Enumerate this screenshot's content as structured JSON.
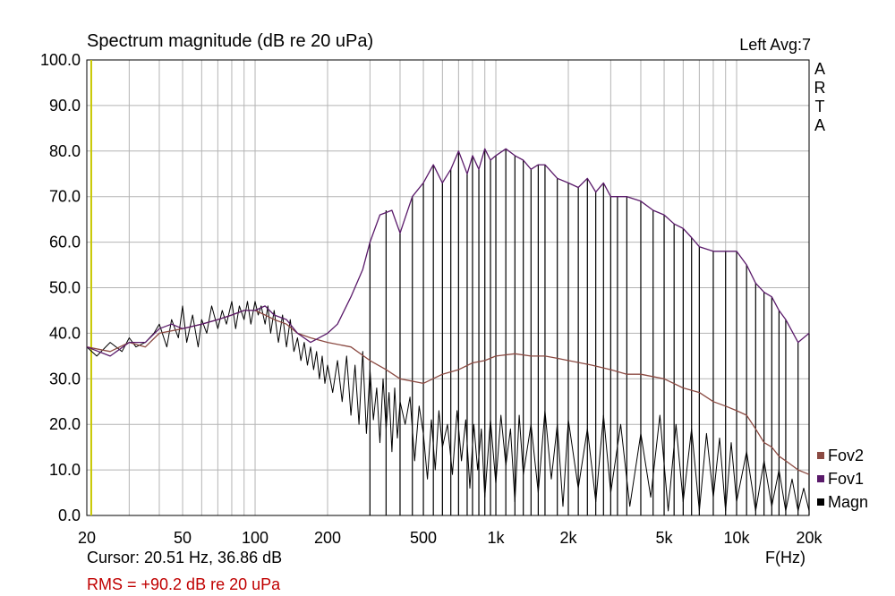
{
  "header": {
    "title": "Spectrum magnitude (dB re 20 uPa)",
    "channel_info": "Left  Avg:7"
  },
  "brand": {
    "letters": [
      "A",
      "R",
      "T",
      "A"
    ]
  },
  "footer": {
    "cursor": "Cursor: 20.51 Hz, 36.86 dB",
    "rms": "RMS =  +90.2 dB re 20 uPa",
    "rms_color": "#c00000",
    "x_axis_title": "F(Hz)"
  },
  "legend": [
    {
      "name": "Fov2",
      "color": "#8b4a42"
    },
    {
      "name": "Fov1",
      "color": "#5a1a6a"
    },
    {
      "name": "Magn",
      "color": "#000000"
    }
  ],
  "chart_data": {
    "type": "line",
    "title": "Spectrum magnitude (dB re 20 uPa)",
    "xlabel": "F(Hz)",
    "ylabel": "",
    "x_scale": "log",
    "xlim": [
      20,
      20000
    ],
    "ylim": [
      0,
      100
    ],
    "grid": true,
    "legend_position": "bottom-right",
    "cursor_hz": 20.51,
    "cursor_color": "#c8c800",
    "x_ticks": [
      {
        "value": 20,
        "label": "20"
      },
      {
        "value": 50,
        "label": "50"
      },
      {
        "value": 100,
        "label": "100"
      },
      {
        "value": 200,
        "label": "200"
      },
      {
        "value": 500,
        "label": "500"
      },
      {
        "value": 1000,
        "label": "1k"
      },
      {
        "value": 2000,
        "label": "2k"
      },
      {
        "value": 5000,
        "label": "5k"
      },
      {
        "value": 10000,
        "label": "10k"
      },
      {
        "value": 20000,
        "label": "20k"
      }
    ],
    "y_ticks": [
      {
        "value": 0,
        "label": "0.0"
      },
      {
        "value": 10,
        "label": "10.0"
      },
      {
        "value": 20,
        "label": "20.0"
      },
      {
        "value": 30,
        "label": "30.0"
      },
      {
        "value": 40,
        "label": "40.0"
      },
      {
        "value": 50,
        "label": "50.0"
      },
      {
        "value": 60,
        "label": "60.0"
      },
      {
        "value": 70,
        "label": "70.0"
      },
      {
        "value": 80,
        "label": "80.0"
      },
      {
        "value": 90,
        "label": "90.0"
      },
      {
        "value": 100,
        "label": "100.0"
      }
    ],
    "series": [
      {
        "name": "Fov1",
        "color": "#5a1a6a",
        "x": [
          20,
          25,
          30,
          35,
          40,
          45,
          50,
          60,
          70,
          80,
          90,
          100,
          110,
          120,
          135,
          150,
          170,
          200,
          220,
          250,
          280,
          300,
          330,
          370,
          400,
          450,
          500,
          550,
          600,
          650,
          700,
          760,
          800,
          850,
          900,
          950,
          1000,
          1100,
          1200,
          1300,
          1400,
          1500,
          1600,
          1800,
          2000,
          2200,
          2400,
          2600,
          2800,
          3000,
          3200,
          3500,
          4000,
          4500,
          5000,
          5500,
          6000,
          6500,
          7000,
          8000,
          9000,
          10000,
          11000,
          12000,
          13000,
          14000,
          15000,
          16000,
          18000,
          20000
        ],
        "y": [
          37,
          35,
          38,
          38,
          41,
          42,
          41,
          42,
          43,
          44,
          45,
          45,
          46,
          44,
          43,
          40,
          38,
          40,
          42,
          48,
          54,
          60,
          66,
          67,
          62,
          70,
          73,
          77,
          73,
          76,
          80,
          75,
          79,
          76,
          80.5,
          78,
          79,
          80.5,
          79,
          78,
          76,
          77,
          77,
          74,
          73,
          72,
          74,
          71,
          73,
          70,
          70,
          70,
          69,
          67,
          66,
          64,
          63,
          61,
          59,
          58,
          58,
          58,
          55,
          51,
          49,
          48,
          45,
          43,
          38,
          40
        ]
      },
      {
        "name": "Fov2",
        "color": "#8b4a42",
        "x": [
          20,
          25,
          30,
          35,
          40,
          50,
          60,
          70,
          80,
          90,
          100,
          110,
          120,
          135,
          150,
          170,
          200,
          250,
          300,
          350,
          400,
          500,
          600,
          700,
          800,
          900,
          1000,
          1200,
          1400,
          1600,
          1800,
          2000,
          2500,
          3000,
          3500,
          4000,
          5000,
          6000,
          7000,
          8000,
          9000,
          10000,
          11000,
          12000,
          13000,
          14000,
          15000,
          16000,
          18000,
          20000
        ],
        "y": [
          37,
          36,
          38,
          37,
          40,
          41,
          42,
          43,
          44,
          45,
          45,
          44,
          43,
          42,
          40,
          39,
          38,
          37,
          34,
          32,
          30,
          29,
          31,
          32,
          33.5,
          34,
          35,
          35.5,
          35,
          35,
          34.5,
          34,
          33,
          32,
          31,
          31,
          30,
          28,
          27,
          25,
          24,
          23,
          22,
          19,
          16,
          15,
          13,
          12,
          10,
          9
        ]
      },
      {
        "name": "Magn",
        "color": "#000000",
        "x": [
          20,
          22,
          25,
          28,
          30,
          32,
          35,
          38,
          40,
          43,
          45,
          48,
          50,
          52,
          55,
          58,
          60,
          63,
          66,
          70,
          73,
          76,
          80,
          83,
          86,
          90,
          93,
          96,
          100,
          103,
          106,
          110,
          113,
          116,
          120,
          125,
          130,
          135,
          140,
          145,
          150,
          155,
          160,
          165,
          170,
          175,
          180,
          185,
          190,
          195,
          200,
          210,
          220,
          230,
          240,
          250,
          260,
          270,
          280,
          290,
          300,
          310,
          320,
          330,
          340,
          350,
          360,
          370,
          380,
          390,
          400,
          420,
          440,
          460,
          480,
          500,
          520,
          540,
          560,
          580,
          600,
          630,
          660,
          690,
          720,
          750,
          780,
          810,
          840,
          870,
          900,
          950,
          1000,
          1050,
          1100,
          1150,
          1200,
          1250,
          1300,
          1400,
          1500,
          1600,
          1700,
          1800,
          1900,
          2000,
          2200,
          2400,
          2600,
          2800,
          3000,
          3300,
          3600,
          4000,
          4400,
          4800,
          5200,
          5600,
          6000,
          6500,
          7000,
          7500,
          8000,
          8500,
          9000,
          9500,
          10000,
          11000,
          12000,
          13000,
          14000,
          15000,
          16000,
          17000,
          18000,
          19000,
          20000
        ],
        "y": [
          37,
          35,
          38,
          36,
          39,
          37,
          38,
          40,
          42,
          37,
          43,
          39,
          46,
          38,
          44,
          37,
          43,
          40,
          46,
          41,
          45,
          42,
          47,
          41,
          46,
          43,
          47,
          42,
          47,
          44,
          46,
          42,
          46,
          40,
          45,
          38,
          44,
          37,
          43,
          36,
          39,
          34,
          38,
          33,
          37,
          32,
          36,
          30,
          35,
          29,
          33,
          27,
          34,
          25,
          35,
          22,
          33,
          20,
          36,
          18,
          32,
          21,
          28,
          16,
          30,
          19,
          27,
          14,
          28,
          17,
          25,
          20,
          26,
          12,
          24,
          18,
          8,
          21,
          10,
          23,
          15,
          20,
          9,
          23,
          12,
          21,
          6,
          20,
          10,
          19,
          4,
          21,
          7,
          22,
          11,
          19,
          3,
          22,
          9,
          20,
          5,
          23,
          8,
          20,
          2,
          21,
          6,
          19,
          3,
          22,
          5,
          20,
          2,
          18,
          4,
          22,
          1,
          20,
          3,
          19,
          1,
          18,
          4,
          17,
          1,
          16,
          3,
          14,
          1,
          12,
          2,
          10,
          1,
          8,
          1,
          6,
          1
        ]
      }
    ],
    "spikes": {
      "name": "Fov1",
      "color": "#000000",
      "x": [
        300,
        350,
        400,
        450,
        500,
        550,
        600,
        650,
        700,
        760,
        800,
        850,
        900,
        950,
        1000,
        1100,
        1200,
        1300,
        1400,
        1500,
        1600,
        1800,
        2000,
        2200,
        2400,
        2600,
        2800,
        3000,
        3200,
        3500,
        4000,
        4500,
        5000,
        5500,
        6000,
        6500,
        7000,
        8000,
        9000,
        10000,
        11000,
        12000,
        13000,
        14000,
        15000,
        16000,
        18000,
        20000
      ],
      "y": [
        60,
        67,
        62,
        70,
        73,
        77,
        73,
        76,
        80,
        75,
        79,
        76,
        80.5,
        78,
        79,
        80.5,
        79,
        78,
        76,
        77,
        77,
        74,
        73,
        72,
        74,
        71,
        73,
        70,
        70,
        70,
        69,
        67,
        66,
        64,
        63,
        61,
        59,
        58,
        58,
        58,
        55,
        51,
        49,
        48,
        45,
        43,
        38,
        40
      ]
    }
  }
}
